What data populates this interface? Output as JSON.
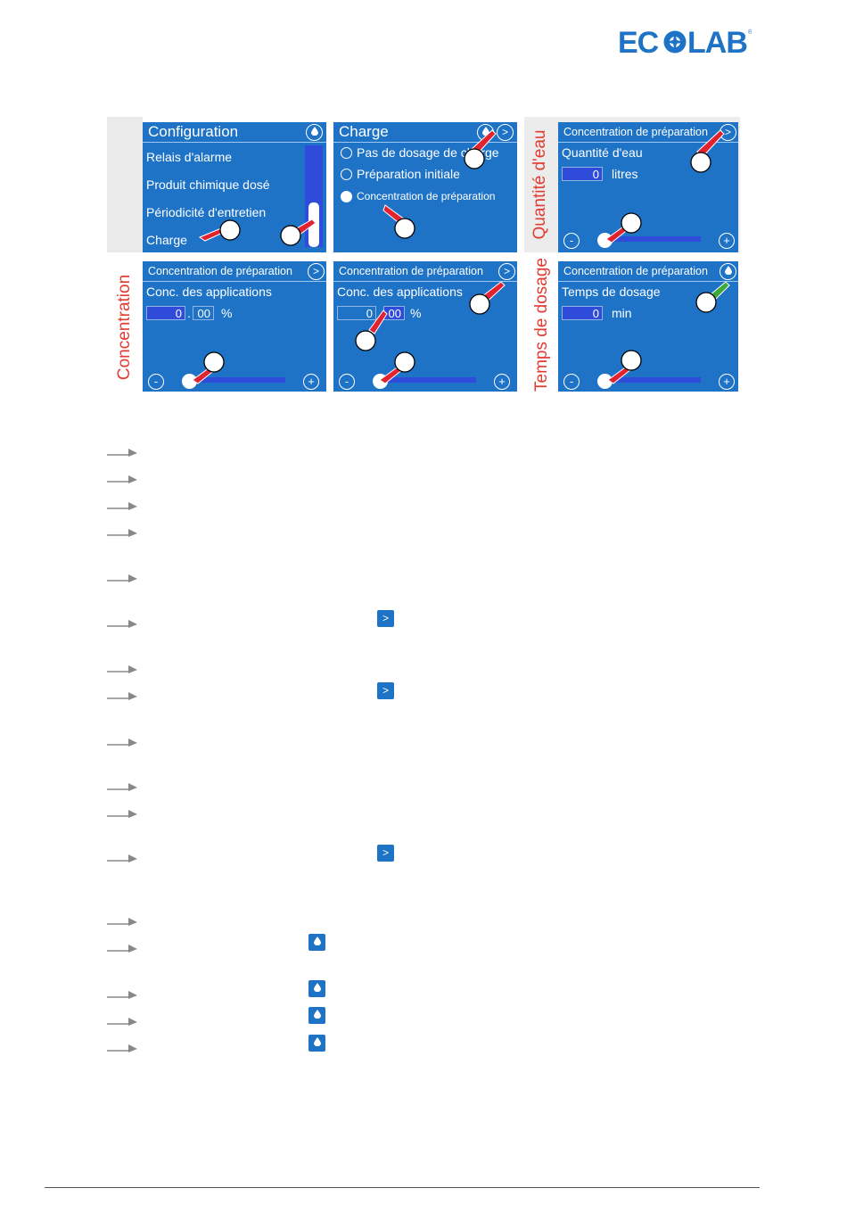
{
  "logo_text": "ECOLAB",
  "colors": {
    "screen": "#1e73c6",
    "field": "#2f4bd9",
    "hand_red": "#e0232e",
    "hand_green": "#3ea83a",
    "brand": "#1e73c6"
  },
  "side_labels": {
    "water": "Quantité d'eau",
    "concentration": "Concentration",
    "time": "Temps de dosage"
  },
  "panels": {
    "config": {
      "title": "Configuration",
      "items": [
        "Relais d'alarme",
        "Produit chimique dosé",
        "Périodicité d'entretien",
        "Charge"
      ]
    },
    "charge": {
      "title": "Charge",
      "options": [
        "Pas de dosage de charge",
        "Préparation initiale",
        "Concentration de préparation"
      ],
      "next": ">"
    },
    "water": {
      "title": "Concentration de préparation",
      "next": ">",
      "label": "Quantité d'eau",
      "value": "0",
      "unit": "litres",
      "minus": "-",
      "plus": "+"
    },
    "conc1": {
      "title": "Concentration de préparation",
      "next": ">",
      "label": "Conc. des applications",
      "int": "0",
      "sep": ".",
      "dec": "00",
      "unit": "%",
      "minus": "-",
      "plus": "+"
    },
    "conc2": {
      "title": "Concentration de préparation",
      "next": ">",
      "label": "Conc. des applications",
      "int": "0",
      "sep": ".",
      "dec": "00",
      "unit": "%",
      "minus": "-",
      "plus": "+"
    },
    "time": {
      "title": "Concentration de préparation",
      "label": "Temps de dosage",
      "value": "0",
      "unit": "min",
      "minus": "-",
      "plus": "+"
    }
  },
  "inline_icons": {
    "next": ">"
  }
}
